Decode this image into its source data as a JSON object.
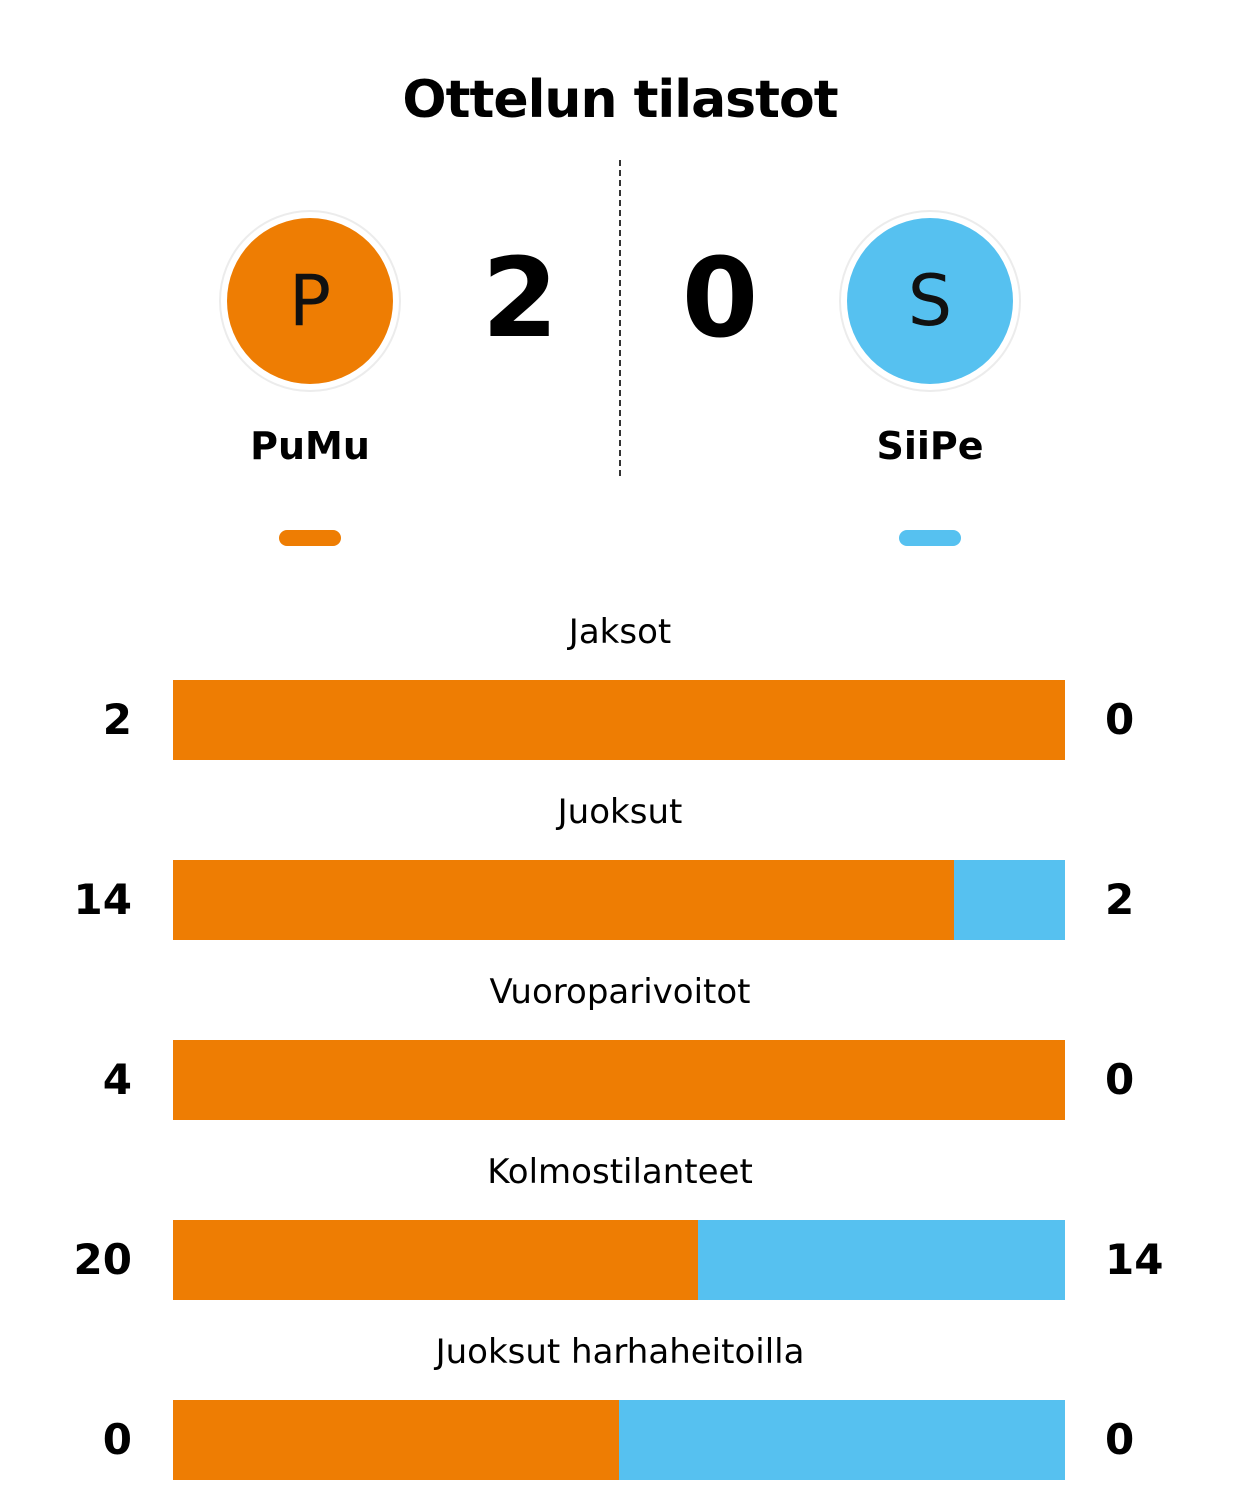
{
  "title": "Ottelun tilastot",
  "colors": {
    "home": "#EE7D03",
    "away": "#56C1F0"
  },
  "home": {
    "name": "PuMu",
    "logo_letter": "P",
    "score": "2"
  },
  "away": {
    "name": "SiiPe",
    "logo_letter": "S",
    "score": "0"
  },
  "chart_data": {
    "type": "bar",
    "orientation": "horizontal-stacked-percent",
    "categories": [
      "Jaksot",
      "Juoksut",
      "Vuoroparivoitot",
      "Kolmostilanteet",
      "Juoksut harhaheitoilla"
    ],
    "series": [
      {
        "name": "PuMu",
        "values": [
          2,
          14,
          4,
          20,
          0
        ]
      },
      {
        "name": "SiiPe",
        "values": [
          0,
          2,
          0,
          14,
          0
        ]
      }
    ]
  }
}
